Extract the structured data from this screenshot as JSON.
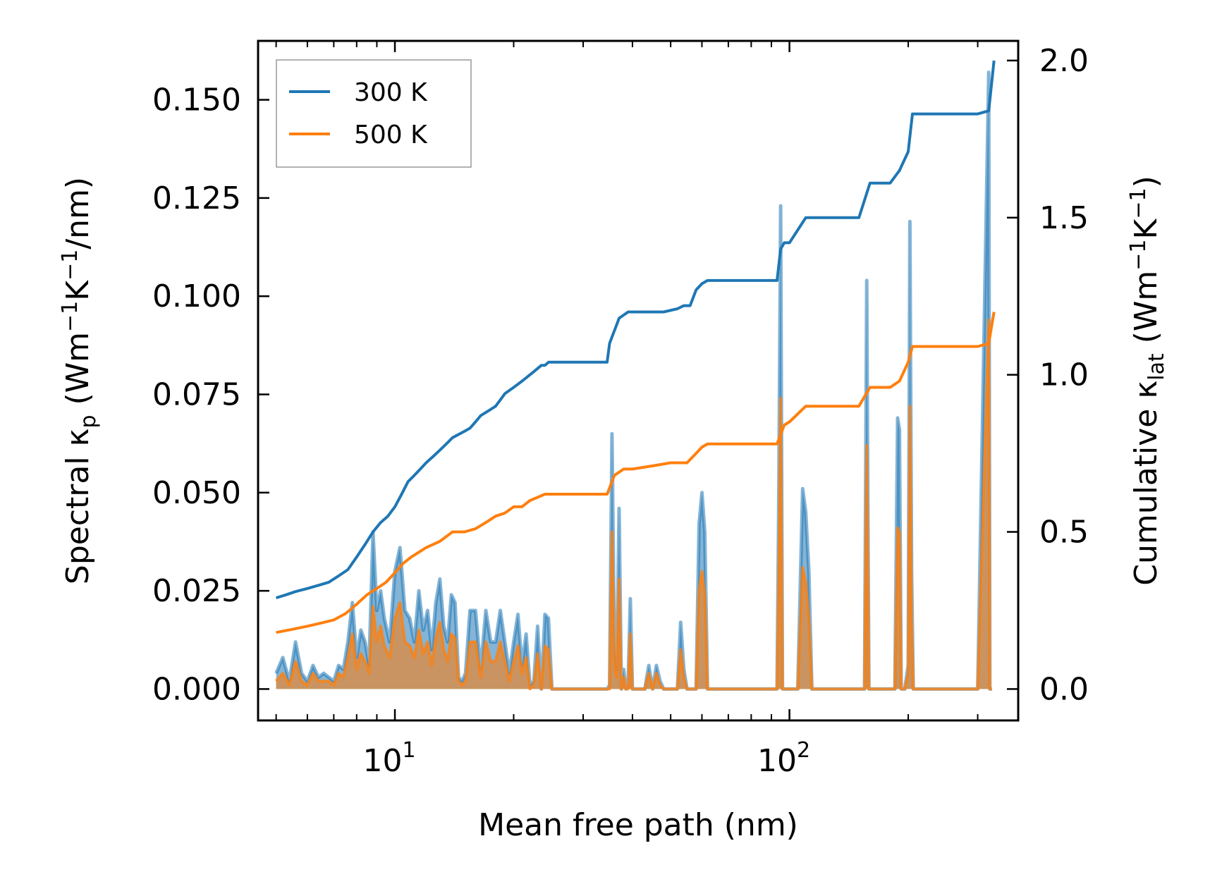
{
  "chart_data": {
    "type": "line",
    "title": "",
    "xlabel": "Mean free path (nm)",
    "ylabel_left": {
      "main": "Spectral κ",
      "sub": "p",
      "unit_a": " (Wm",
      "sup1": "−1",
      "unit_b": "K",
      "sup2": "−1",
      "unit_c": "/nm)"
    },
    "ylabel_right": {
      "main": "Cumulative κ",
      "sub": "lat",
      "unit_a": " (Wm",
      "sup1": "−1",
      "unit_b": "K",
      "sup2": "−1",
      "unit_c": ")"
    },
    "x_scale": "log",
    "xlim": [
      4.5,
      380
    ],
    "ylim_left": [
      -0.008,
      0.165
    ],
    "ylim_right": [
      -0.1,
      2.0625
    ],
    "x_ticks": [
      {
        "value": 10,
        "base": "10",
        "exp": "1"
      },
      {
        "value": 100,
        "base": "10",
        "exp": "2"
      }
    ],
    "y_ticks_left": [
      "0.000",
      "0.025",
      "0.050",
      "0.075",
      "0.100",
      "0.125",
      "0.150"
    ],
    "y_ticks_right": [
      "0.0",
      "0.5",
      "1.0",
      "1.5",
      "2.0"
    ],
    "legend": {
      "position": "top-left",
      "entries": [
        {
          "label": "300 K",
          "color": "#1f77b4"
        },
        {
          "label": "500 K",
          "color": "#ff7f0e"
        }
      ]
    },
    "colors": {
      "c300": "#1f77b4",
      "c500": "#ff7f0e",
      "fill300": "#1f77b4",
      "fill500": "#e08a3a"
    },
    "spectral": {
      "x": [
        5,
        5.2,
        5.4,
        5.6,
        5.8,
        6.0,
        6.2,
        6.4,
        6.6,
        6.8,
        7.0,
        7.2,
        7.4,
        7.6,
        7.8,
        8.0,
        8.2,
        8.4,
        8.6,
        8.8,
        9.0,
        9.2,
        9.4,
        9.7,
        10.0,
        10.3,
        10.6,
        10.9,
        11.2,
        11.5,
        11.8,
        12.1,
        12.4,
        12.7,
        13.0,
        13.3,
        13.6,
        13.9,
        14.2,
        14.5,
        14.8,
        15.1,
        15.5,
        16.0,
        16.5,
        17.0,
        17.5,
        18.0,
        18.5,
        19.0,
        19.5,
        20.0,
        20.5,
        21.0,
        21.5,
        22.0,
        22.5,
        23.0,
        23.5,
        24.0,
        24.5,
        25,
        30,
        34.5,
        35,
        35.5,
        36,
        36.5,
        37,
        37.5,
        38,
        38.5,
        39,
        39.5,
        40,
        42,
        43,
        44,
        45,
        46,
        47,
        48,
        52,
        53,
        54,
        55,
        58,
        59,
        60,
        61,
        62,
        64,
        70,
        80,
        93,
        94,
        95,
        96,
        97,
        98,
        100,
        105,
        108,
        110,
        112,
        114,
        116,
        118,
        120,
        150,
        155,
        157,
        158,
        159,
        160,
        162,
        180,
        185,
        188,
        190,
        192,
        194,
        196,
        200,
        202,
        204,
        206,
        208,
        210,
        212,
        220,
        300,
        320,
        322,
        324,
        326,
        328,
        330
      ],
      "y300": [
        0.004,
        0.008,
        0.002,
        0.012,
        0.004,
        0.002,
        0.006,
        0.003,
        0.004,
        0.003,
        0.002,
        0.006,
        0.005,
        0.012,
        0.022,
        0.008,
        0.015,
        0.012,
        0.006,
        0.04,
        0.02,
        0.025,
        0.018,
        0.012,
        0.03,
        0.036,
        0.02,
        0.018,
        0.012,
        0.025,
        0.015,
        0.02,
        0.01,
        0.022,
        0.028,
        0.016,
        0.012,
        0.024,
        0.022,
        0.003,
        0.002,
        0.004,
        0.02,
        0.02,
        0.005,
        0.02,
        0.012,
        0.012,
        0.02,
        0.012,
        0.004,
        0.012,
        0.019,
        0.006,
        0.014,
        0.001,
        0.002,
        0.016,
        0.0,
        0.019,
        0.018,
        0.0,
        0.0,
        0.0,
        0.001,
        0.065,
        0.012,
        0.005,
        0.046,
        0.0,
        0.005,
        0.0,
        0.001,
        0.023,
        0.0,
        0.0,
        0.0,
        0.006,
        0.0,
        0.006,
        0.002,
        0.0,
        0.0,
        0.017,
        0.005,
        0.0,
        0.0,
        0.042,
        0.05,
        0.04,
        0.0,
        0.0,
        0.0,
        0.0,
        0.0,
        0.05,
        0.123,
        0.0,
        0.0,
        0.0,
        0.0,
        0.0,
        0.051,
        0.045,
        0.03,
        0.0,
        0.0,
        0.0,
        0.0,
        0.0,
        0.0,
        0.104,
        0.05,
        0.0,
        0.0,
        0.0,
        0.0,
        0.0,
        0.069,
        0.066,
        0.0,
        0.0,
        0.0,
        0.006,
        0.119,
        0.03,
        0.0,
        0.0,
        0.0,
        0.0,
        0.0,
        0.0,
        0.157,
        0.0,
        0.0,
        0.0
      ],
      "y500": [
        0.002,
        0.004,
        0.001,
        0.007,
        0.002,
        0.001,
        0.004,
        0.002,
        0.002,
        0.002,
        0.001,
        0.004,
        0.003,
        0.008,
        0.014,
        0.005,
        0.009,
        0.007,
        0.004,
        0.021,
        0.012,
        0.016,
        0.011,
        0.008,
        0.018,
        0.022,
        0.012,
        0.011,
        0.008,
        0.015,
        0.009,
        0.012,
        0.006,
        0.013,
        0.017,
        0.01,
        0.007,
        0.014,
        0.013,
        0.002,
        0.001,
        0.002,
        0.012,
        0.012,
        0.003,
        0.012,
        0.007,
        0.007,
        0.012,
        0.007,
        0.002,
        0.007,
        0.011,
        0.004,
        0.008,
        0.0,
        0.001,
        0.009,
        0.0,
        0.011,
        0.01,
        0.0,
        0.0,
        0.0,
        0.0,
        0.04,
        0.007,
        0.003,
        0.028,
        0.0,
        0.003,
        0.0,
        0.0,
        0.014,
        0.0,
        0.0,
        0.0,
        0.004,
        0.0,
        0.004,
        0.001,
        0.0,
        0.0,
        0.01,
        0.003,
        0.0,
        0.0,
        0.025,
        0.03,
        0.024,
        0.0,
        0.0,
        0.0,
        0.0,
        0.0,
        0.03,
        0.074,
        0.0,
        0.0,
        0.0,
        0.0,
        0.0,
        0.031,
        0.027,
        0.018,
        0.0,
        0.0,
        0.0,
        0.0,
        0.0,
        0.0,
        0.062,
        0.03,
        0.0,
        0.0,
        0.0,
        0.0,
        0.0,
        0.041,
        0.04,
        0.0,
        0.0,
        0.0,
        0.004,
        0.072,
        0.018,
        0.0,
        0.0,
        0.0,
        0.0,
        0.0,
        0.0,
        0.094,
        0.0,
        0.0,
        0.0
      ]
    },
    "cumulative": {
      "x300": [
        5,
        5.3,
        5.6,
        6.0,
        6.4,
        6.8,
        7.2,
        7.6,
        8.0,
        8.4,
        8.8,
        9.2,
        9.6,
        10.0,
        10.4,
        10.8,
        11.2,
        11.6,
        12.0,
        12.5,
        13.0,
        13.5,
        14.0,
        14.5,
        15.0,
        15.5,
        16.0,
        16.5,
        17.0,
        17.5,
        18.0,
        18.5,
        19.0,
        19.5,
        20.0,
        20.5,
        21.0,
        21.5,
        22.0,
        22.5,
        23.0,
        23.5,
        24.0,
        24.5,
        30,
        34.5,
        35,
        35.5,
        36,
        36.5,
        37,
        38,
        39,
        40,
        42,
        44,
        46,
        48,
        52,
        54,
        56,
        58,
        60,
        62,
        70,
        80,
        93,
        95,
        97,
        100,
        110,
        120,
        150,
        160,
        180,
        190,
        200,
        205,
        210,
        300,
        320,
        330
      ],
      "y300": [
        0.29,
        0.3,
        0.31,
        0.32,
        0.33,
        0.34,
        0.36,
        0.38,
        0.42,
        0.46,
        0.5,
        0.53,
        0.55,
        0.58,
        0.62,
        0.66,
        0.68,
        0.7,
        0.72,
        0.74,
        0.76,
        0.78,
        0.8,
        0.81,
        0.82,
        0.83,
        0.85,
        0.87,
        0.88,
        0.89,
        0.9,
        0.92,
        0.94,
        0.95,
        0.96,
        0.97,
        0.98,
        0.99,
        1.0,
        1.01,
        1.02,
        1.03,
        1.03,
        1.04,
        1.04,
        1.04,
        1.1,
        1.12,
        1.14,
        1.16,
        1.18,
        1.19,
        1.2,
        1.2,
        1.2,
        1.2,
        1.2,
        1.2,
        1.21,
        1.22,
        1.22,
        1.27,
        1.29,
        1.3,
        1.3,
        1.3,
        1.3,
        1.4,
        1.42,
        1.42,
        1.5,
        1.5,
        1.5,
        1.61,
        1.61,
        1.65,
        1.71,
        1.83,
        1.83,
        1.83,
        1.84,
        2.0
      ],
      "x500": [
        5,
        5.5,
        6.0,
        6.5,
        7.0,
        7.5,
        8.0,
        8.5,
        9.0,
        9.5,
        10.0,
        10.5,
        11.0,
        12.0,
        13.0,
        14.0,
        15.0,
        16.0,
        17.0,
        18.0,
        19.0,
        20.0,
        21.0,
        22.0,
        23.0,
        24.0,
        24.5,
        34.5,
        35,
        36,
        37,
        38,
        40,
        45,
        50,
        55,
        58,
        60,
        62,
        93,
        97,
        100,
        110,
        150,
        160,
        180,
        190,
        200,
        205,
        300,
        320,
        330
      ],
      "y500": [
        0.18,
        0.19,
        0.2,
        0.21,
        0.22,
        0.24,
        0.27,
        0.3,
        0.32,
        0.34,
        0.37,
        0.4,
        0.42,
        0.45,
        0.47,
        0.5,
        0.5,
        0.51,
        0.53,
        0.55,
        0.56,
        0.58,
        0.58,
        0.6,
        0.61,
        0.62,
        0.62,
        0.62,
        0.64,
        0.68,
        0.69,
        0.7,
        0.7,
        0.71,
        0.72,
        0.72,
        0.75,
        0.77,
        0.78,
        0.78,
        0.84,
        0.85,
        0.9,
        0.9,
        0.96,
        0.96,
        0.98,
        1.04,
        1.09,
        1.09,
        1.1,
        1.2
      ]
    }
  }
}
